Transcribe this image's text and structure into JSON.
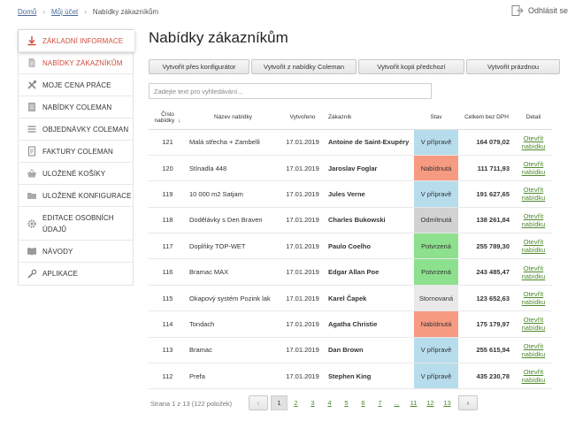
{
  "breadcrumb": {
    "items": [
      "Domů",
      "Můj účet",
      "Nabídky zákazníkům"
    ]
  },
  "logout_label": "Odhlásit se",
  "sidebar": {
    "items": [
      {
        "label": "ZÁKLADNÍ INFORMACE",
        "icon": "download-icon"
      },
      {
        "label": "NABÍDKY ZÁKAZNÍKŮM",
        "icon": "document-icon"
      },
      {
        "label": "MOJE CENA PRÁCE",
        "icon": "tools-icon"
      },
      {
        "label": "NABÍDKY COLEMAN",
        "icon": "list-document-icon"
      },
      {
        "label": "OBJEDNÁVKY COLEMAN",
        "icon": "menu-lines-icon"
      },
      {
        "label": "FAKTURY COLEMAN",
        "icon": "invoice-icon"
      },
      {
        "label": "ULOŽENÉ KOŠÍKY",
        "icon": "basket-icon"
      },
      {
        "label": "ULOŽENÉ KONFIGURACE",
        "icon": "folder-icon"
      },
      {
        "label": "EDITACE OSOBNÍCH",
        "label2": "ÚDAJŮ",
        "icon": "gear-icon"
      },
      {
        "label": "NÁVODY",
        "icon": "book-icon"
      },
      {
        "label": "APLIKACE",
        "icon": "wrench-icon"
      }
    ]
  },
  "page_title": "Nabídky zákazníkům",
  "buttons": {
    "konfigurator": "Vytvořit přes konfigurátor",
    "coleman": "Vytvořit z nabídky Coleman",
    "kopie": "Vytvořit kopii předchozí",
    "prazdnou": "Vytvořit prázdnou"
  },
  "search": {
    "placeholder": "Zadejte text pro vyhledávání..."
  },
  "table": {
    "headers": {
      "cislo_line1": "Číslo",
      "cislo_line2": "nabídky",
      "nazev": "Název nabídky",
      "vytvoreno": "Vytvořeno",
      "zakaznik": "Zákazník",
      "stav": "Stav",
      "celkem": "Celkem bez DPH",
      "detail": "Detail"
    },
    "rows": [
      {
        "id": "121",
        "name": "Malá střecha + Zambelli",
        "date": "17.01.2019",
        "customer": "Antoine de Saint-Exupéry",
        "status": "V přípravě",
        "status_key": "priprave",
        "total": "164 079,02",
        "link1": "Otevřít",
        "link2": "nabídku"
      },
      {
        "id": "120",
        "name": "Stínadla 448",
        "date": "17.01.2019",
        "customer": "Jaroslav Foglar",
        "status": "Nabídnutá",
        "status_key": "nabidnuta",
        "total": "111 711,93",
        "link1": "Otevřít",
        "link2": "nabídku"
      },
      {
        "id": "119",
        "name": "10 000 m2 Satjam",
        "date": "17.01.2019",
        "customer": "Jules Verne",
        "status": "V přípravě",
        "status_key": "priprave",
        "total": "191 627,65",
        "link1": "Otevřít",
        "link2": "nabídku"
      },
      {
        "id": "118",
        "name": "Dodělávky s Den Braven",
        "date": "17.01.2019",
        "customer": "Charles Bukowski",
        "status": "Odmítnutá",
        "status_key": "odmitnuta",
        "total": "138 261,84",
        "link1": "Otevřít",
        "link2": "nabídku"
      },
      {
        "id": "117",
        "name": "Doplňky TOP-WET",
        "date": "17.01.2019",
        "customer": "Paulo Coelho",
        "status": "Potvrzená",
        "status_key": "potvrzena",
        "total": "255 789,30",
        "link1": "Otevřít",
        "link2": "nabídku"
      },
      {
        "id": "116",
        "name": "Bramac MAX",
        "date": "17.01.2019",
        "customer": "Edgar Allan Poe",
        "status": "Potvrzená",
        "status_key": "potvrzena",
        "total": "243 485,47",
        "link1": "Otevřít",
        "link2": "nabídku"
      },
      {
        "id": "115",
        "name": "Okapový systém Pozink lak",
        "date": "17.01.2019",
        "customer": "Karel Čapek",
        "status": "Stornovaná",
        "status_key": "stornovana",
        "total": "123 652,63",
        "link1": "Otevřít",
        "link2": "nabídku"
      },
      {
        "id": "114",
        "name": "Tondach",
        "date": "17.01.2019",
        "customer": "Agatha Christie",
        "status": "Nabídnutá",
        "status_key": "nabidnuta",
        "total": "175 179,97",
        "link1": "Otevřít",
        "link2": "nabídku"
      },
      {
        "id": "113",
        "name": "Bramac",
        "date": "17.01.2019",
        "customer": "Dan Brown",
        "status": "V přípravě",
        "status_key": "priprave",
        "total": "255 615,94",
        "link1": "Otevřít",
        "link2": "nabídku"
      },
      {
        "id": "112",
        "name": "Prefa",
        "date": "17.01.2019",
        "customer": "Stephen King",
        "status": "V přípravě",
        "status_key": "priprave",
        "total": "435 230,78",
        "link1": "Otevřít",
        "link2": "nabídku"
      }
    ]
  },
  "pagination": {
    "info": "Strana 1 z 13 (122 položek)",
    "prev": "‹",
    "next": "›",
    "pages": [
      "1",
      "2",
      "3",
      "4",
      "5",
      "6",
      "7",
      "...",
      "11",
      "12",
      "13"
    ],
    "current": "1"
  },
  "colors": {
    "accent_red": "#d34b3b",
    "link_green": "#4e8a2d",
    "status_priprave": "#b7dcec",
    "status_nabidnuta": "#f79a82",
    "status_odmitnuta": "#d2d2d2",
    "status_potvrzena": "#8de08e",
    "status_stornovana": "#e9e9e9"
  }
}
